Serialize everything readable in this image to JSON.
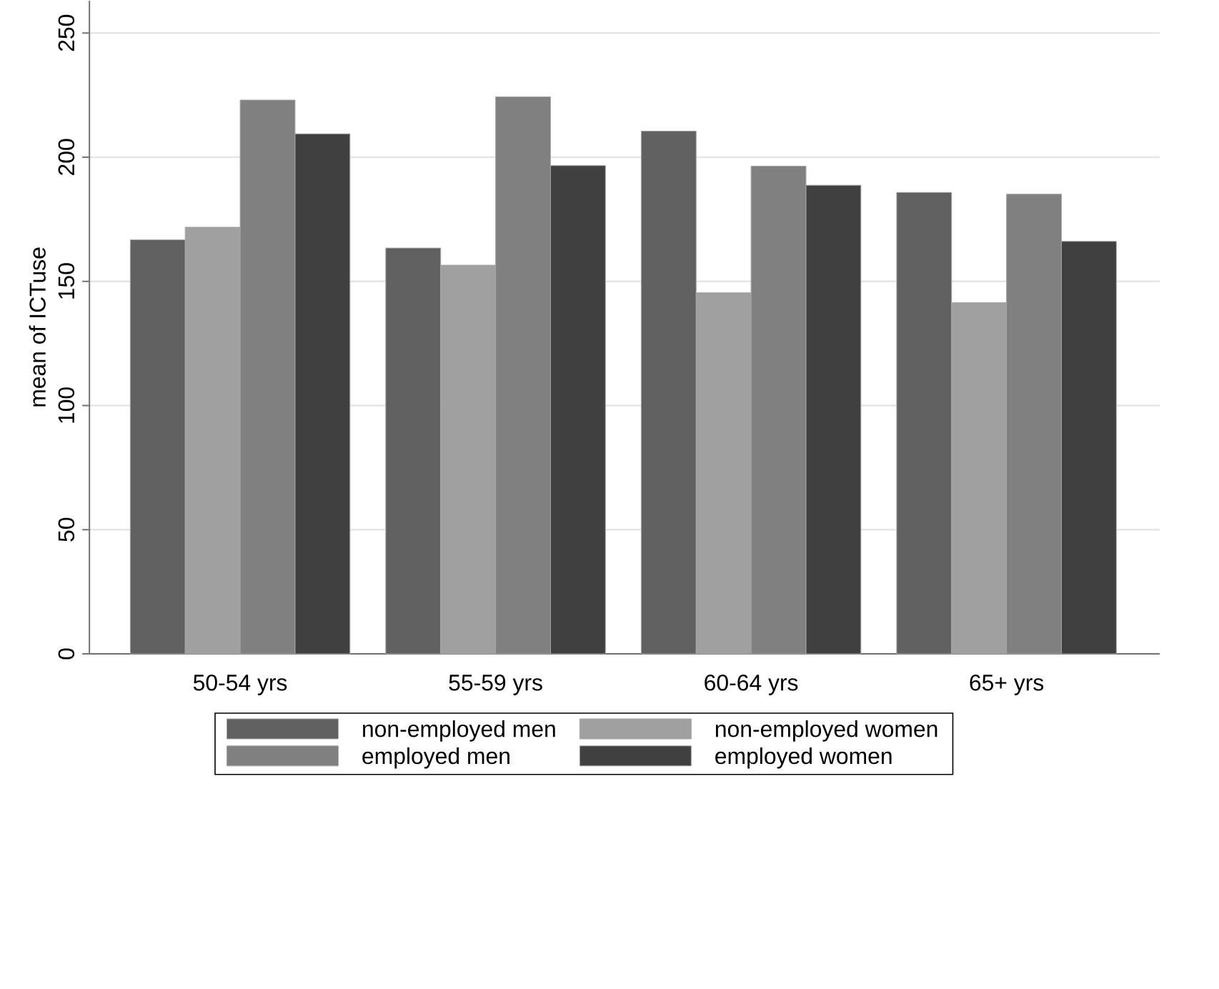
{
  "chart_data": {
    "type": "bar",
    "ylabel": "mean of ICTuse",
    "categories": [
      "50-54 yrs",
      "55-59 yrs",
      "60-64 yrs",
      "65+ yrs"
    ],
    "series": [
      {
        "name": "non-employed men",
        "color": "#606060",
        "values": [
          166.7,
          163.4,
          210.5,
          185.8
        ]
      },
      {
        "name": "non-employed women",
        "color": "#a0a0a0",
        "values": [
          171.8,
          156.5,
          145.4,
          141.4
        ]
      },
      {
        "name": "employed men",
        "color": "#808080",
        "values": [
          223,
          224.3,
          196.4,
          185.1
        ]
      },
      {
        "name": "employed women",
        "color": "#404040",
        "values": [
          209.4,
          196.6,
          188.7,
          166.1
        ]
      }
    ],
    "ylim": [
      0,
      263
    ],
    "yticks": [
      0,
      50,
      100,
      150,
      200,
      250
    ],
    "grid": "y",
    "legend": "bottom"
  }
}
